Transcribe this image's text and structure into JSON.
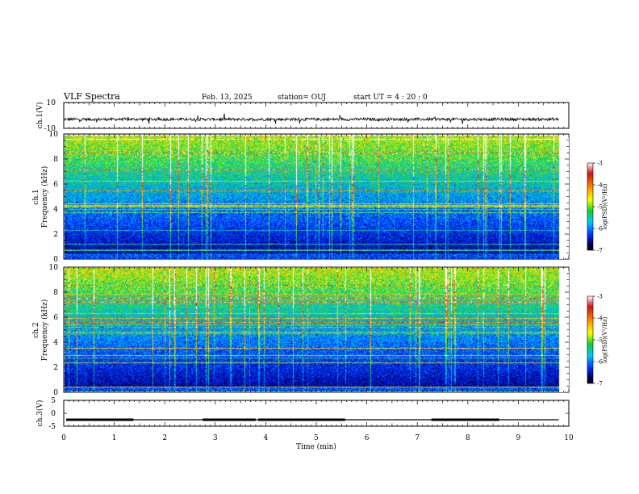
{
  "header": {
    "title": "VLF Spectra",
    "date": "Feb. 13, 2025",
    "station": "station= OUJ",
    "start": "start  UT =  4 : 20 : 0"
  },
  "chart_data": [
    {
      "type": "line",
      "panel": "ch1-waveform",
      "ylabel": "ch.1(V)",
      "ylim": [
        -10,
        10
      ],
      "yticks": [
        "10",
        "-10"
      ],
      "xlim": [
        0,
        10
      ],
      "baseline": -3,
      "line_color": "#000000"
    },
    {
      "type": "heatmap",
      "panel": "ch1-spectrogram",
      "ylabel": "ch.1\nFrequency (kHz)",
      "ylabel_line1": "ch.1",
      "ylabel_line2": "Frequency (kHz)",
      "ylim": [
        0,
        10
      ],
      "yticks": [
        "0",
        "2",
        "4",
        "6",
        "8",
        "10"
      ],
      "xlim": [
        0,
        10
      ],
      "data_end_min": 9.8,
      "colorbar": {
        "label": "log(PSD)(V²/Hz)",
        "range": [
          -7,
          -3
        ],
        "ticks": [
          "-3",
          "-4",
          "-5",
          "-6",
          "-7"
        ]
      }
    },
    {
      "type": "heatmap",
      "panel": "ch2-spectrogram",
      "ylabel": "ch.2\nFrequency (kHz)",
      "ylabel_line1": "ch.2",
      "ylabel_line2": "Frequency (kHz)",
      "ylim": [
        0,
        10
      ],
      "yticks": [
        "0",
        "2",
        "4",
        "6",
        "8",
        "10"
      ],
      "xlim": [
        0,
        10
      ],
      "data_end_min": 9.8,
      "colorbar": {
        "label": "log(PSD)(V²/Hz)",
        "range": [
          -7,
          -3
        ],
        "ticks": [
          "-3",
          "-4",
          "-5",
          "-6",
          "-7"
        ]
      }
    },
    {
      "type": "line",
      "panel": "ch3-signal",
      "ylabel": "ch.3(V)",
      "ylim": [
        -5,
        5
      ],
      "yticks": [
        "5",
        "0",
        "-5"
      ],
      "xlim": [
        0,
        10
      ],
      "xlabel": "Time (min)",
      "xticks": [
        "0",
        "1",
        "2",
        "3",
        "4",
        "5",
        "6",
        "7",
        "8",
        "9",
        "10"
      ],
      "level": -2.5,
      "high_segments": [
        [
          0.05,
          1.38
        ],
        [
          2.75,
          3.8
        ],
        [
          3.85,
          5.57
        ],
        [
          7.28,
          8.62
        ]
      ]
    }
  ]
}
